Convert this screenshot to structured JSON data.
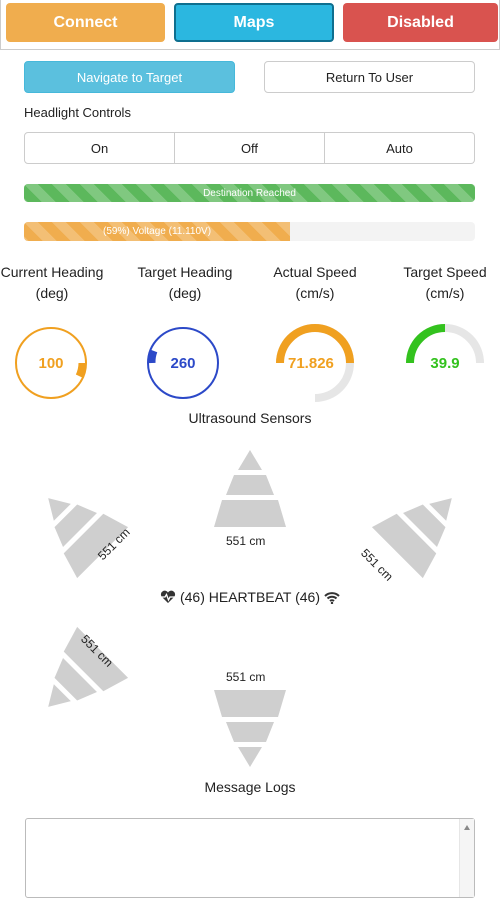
{
  "topbar": {
    "connect": "Connect",
    "maps": "Maps",
    "disabled": "Disabled"
  },
  "nav": {
    "navigate": "Navigate to Target",
    "return": "Return To User"
  },
  "headlight": {
    "title": "Headlight Controls",
    "on": "On",
    "off": "Off",
    "auto": "Auto"
  },
  "status": {
    "destination": "Destination Reached",
    "destination_progress": 1.0,
    "voltage": "(59%) Voltage (11.110V)",
    "voltage_percent": 59
  },
  "gauges": [
    {
      "title": "Current Heading (deg)",
      "value": "100",
      "fraction": 0.28,
      "color": "#f0a020"
    },
    {
      "title": "Target Heading (deg)",
      "value": "260",
      "fraction": 0.72,
      "color": "#2c49c8"
    },
    {
      "title": "Actual Speed (cm/s)",
      "value": "71.826",
      "fraction": 0.5,
      "color": "#f0a020"
    },
    {
      "title": "Target Speed (cm/s)",
      "value": "39.9",
      "fraction": 0.4,
      "color": "#33c21e"
    }
  ],
  "ultrasound": {
    "title": "Ultrasound Sensors",
    "front": "551 cm",
    "front_left": "551 cm",
    "front_right": "551 cm",
    "rear_left": "551 cm",
    "rear": "551 cm"
  },
  "heartbeat": {
    "text": "(46) HEARTBEAT (46)"
  },
  "logs": {
    "title": "Message Logs",
    "content": ""
  },
  "colors": {
    "connect": "#f0ad4e",
    "maps": "#2bb7e0",
    "disabled": "#d9534f",
    "navigate": "#5bc0de",
    "success": "#5cb85c"
  }
}
